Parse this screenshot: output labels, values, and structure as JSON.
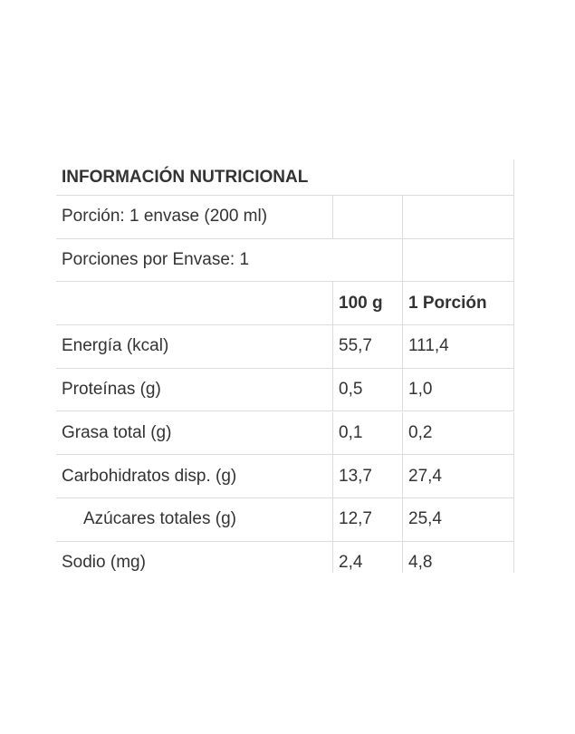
{
  "table": {
    "title": "INFORMACIÓN NUTRICIONAL",
    "serving_size": "Porción: 1 envase (200 ml)",
    "servings_per_container": "Porciones por Envase: 1",
    "columns": [
      "100 g",
      "1 Porción"
    ],
    "rows": [
      [
        "Energía (kcal)",
        "55,7",
        "111,4"
      ],
      [
        "Proteínas (g)",
        "0,5",
        "1,0"
      ],
      [
        "Grasa total (g)",
        "0,1",
        "0,2"
      ],
      [
        "Carbohidratos disp. (g)",
        "13,7",
        "27,4"
      ],
      [
        "Azúcares totales (g)",
        "12,7",
        "25,4"
      ],
      [
        "Sodio (mg)",
        "2,4",
        "4,8"
      ]
    ]
  }
}
